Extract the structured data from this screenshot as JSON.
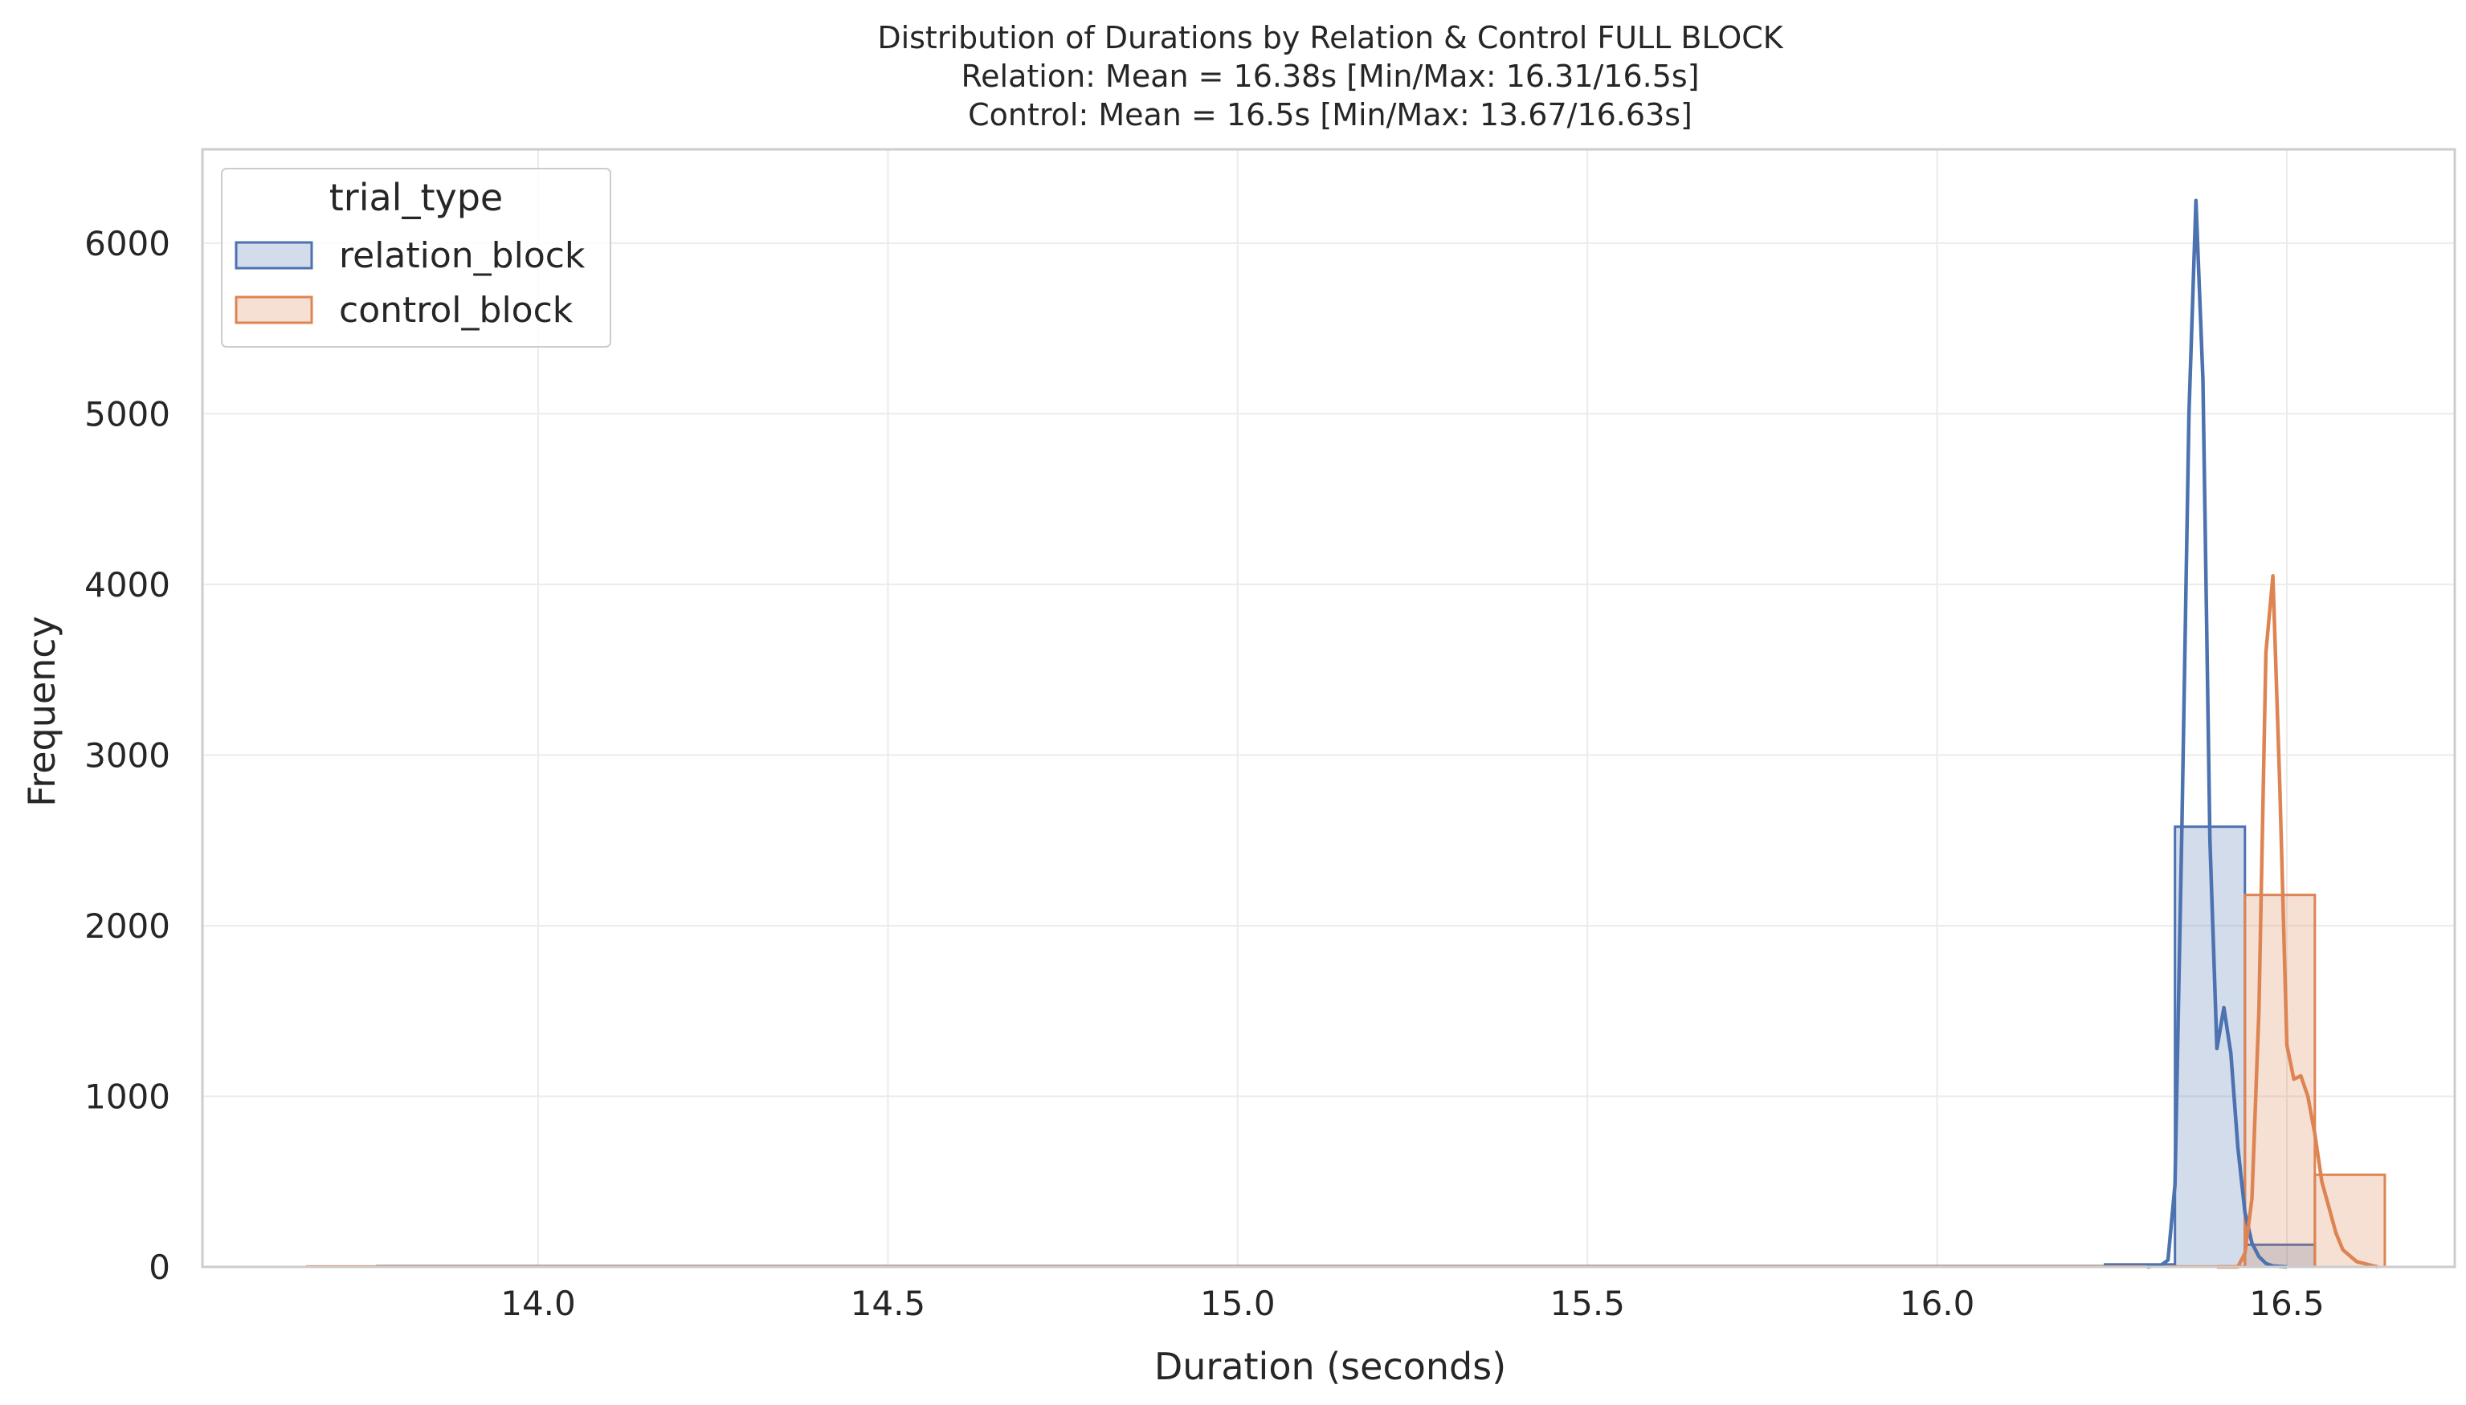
{
  "chart_data": {
    "type": "histogram",
    "title": [
      "Distribution of Durations by Relation & Control FULL BLOCK",
      "Relation: Mean = 16.38s [Min/Max: 16.31/16.5s]",
      "Control: Mean = 16.5s [Min/Max: 13.67/16.63s]"
    ],
    "xlabel": "Duration (seconds)",
    "ylabel": "Frequency",
    "xlim": [
      13.52,
      16.74
    ],
    "ylim": [
      0,
      6550
    ],
    "xticks": [
      14.0,
      14.5,
      15.0,
      15.5,
      16.0,
      16.5
    ],
    "xtick_labels": [
      "14.0",
      "14.5",
      "15.0",
      "15.5",
      "16.0",
      "16.5"
    ],
    "yticks": [
      0,
      1000,
      2000,
      3000,
      4000,
      5000,
      6000
    ],
    "ytick_labels": [
      "0",
      "1000",
      "2000",
      "3000",
      "4000",
      "5000",
      "6000"
    ],
    "grid": true,
    "legend": {
      "title": "trial_type",
      "placement": "top-left",
      "entries": [
        "relation_block",
        "control_block"
      ]
    },
    "series": [
      {
        "name": "relation_block",
        "color": "#4c72b0",
        "bins": [
          [
            13.67,
            13.77,
            0
          ],
          [
            13.77,
            16.24,
            5
          ],
          [
            16.24,
            16.34,
            15
          ],
          [
            16.34,
            16.44,
            2580
          ],
          [
            16.44,
            16.54,
            130
          ]
        ],
        "kde": [
          [
            16.3,
            0
          ],
          [
            16.32,
            10
          ],
          [
            16.33,
            40
          ],
          [
            16.34,
            480
          ],
          [
            16.35,
            2600
          ],
          [
            16.36,
            5000
          ],
          [
            16.37,
            6250
          ],
          [
            16.38,
            5200
          ],
          [
            16.39,
            2500
          ],
          [
            16.4,
            1280
          ],
          [
            16.41,
            1520
          ],
          [
            16.42,
            1250
          ],
          [
            16.43,
            700
          ],
          [
            16.44,
            320
          ],
          [
            16.45,
            140
          ],
          [
            16.46,
            60
          ],
          [
            16.47,
            20
          ],
          [
            16.48,
            5
          ],
          [
            16.5,
            0
          ]
        ]
      },
      {
        "name": "control_block",
        "color": "#dd8452",
        "bins": [
          [
            13.67,
            16.44,
            3
          ],
          [
            16.44,
            16.54,
            2180
          ],
          [
            16.54,
            16.64,
            540
          ]
        ],
        "kde": [
          [
            16.4,
            0
          ],
          [
            16.43,
            0
          ],
          [
            16.44,
            80
          ],
          [
            16.45,
            400
          ],
          [
            16.46,
            1500
          ],
          [
            16.47,
            3600
          ],
          [
            16.48,
            4050
          ],
          [
            16.49,
            2800
          ],
          [
            16.5,
            1300
          ],
          [
            16.51,
            1100
          ],
          [
            16.52,
            1120
          ],
          [
            16.53,
            1000
          ],
          [
            16.54,
            780
          ],
          [
            16.55,
            500
          ],
          [
            16.56,
            350
          ],
          [
            16.57,
            200
          ],
          [
            16.58,
            100
          ],
          [
            16.6,
            30
          ],
          [
            16.63,
            0
          ]
        ]
      }
    ]
  }
}
